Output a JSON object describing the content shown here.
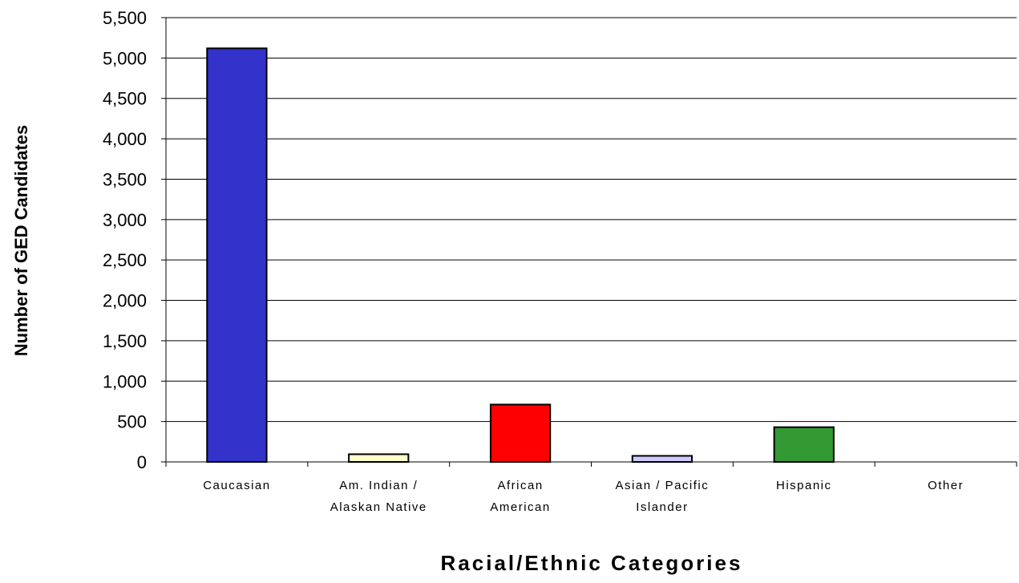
{
  "chart_data": {
    "type": "bar",
    "title": "",
    "xlabel": "Racial/Ethnic Categories",
    "ylabel": "Number of GED Candidates",
    "ylim": [
      0,
      5500
    ],
    "yticks": [
      "0",
      "500",
      "1,000",
      "1,500",
      "2,000",
      "2,500",
      "3,000",
      "3,500",
      "4,000",
      "4,500",
      "5,000",
      "5,500"
    ],
    "ytick_values": [
      0,
      500,
      1000,
      1500,
      2000,
      2500,
      3000,
      3500,
      4000,
      4500,
      5000,
      5500
    ],
    "grid": true,
    "legend": "none",
    "categories": [
      [
        "Caucasian"
      ],
      [
        "Am. Indian /",
        "Alaskan Native"
      ],
      [
        "African",
        "American"
      ],
      [
        "Asian / Pacific",
        "Islander"
      ],
      [
        "Hispanic"
      ],
      [
        "Other"
      ]
    ],
    "values": [
      5120,
      95,
      710,
      75,
      430,
      0
    ],
    "colors": [
      "#3333cc",
      "#ffffcc",
      "#ff0000",
      "#ccccff",
      "#339933",
      "#ffffff"
    ]
  }
}
